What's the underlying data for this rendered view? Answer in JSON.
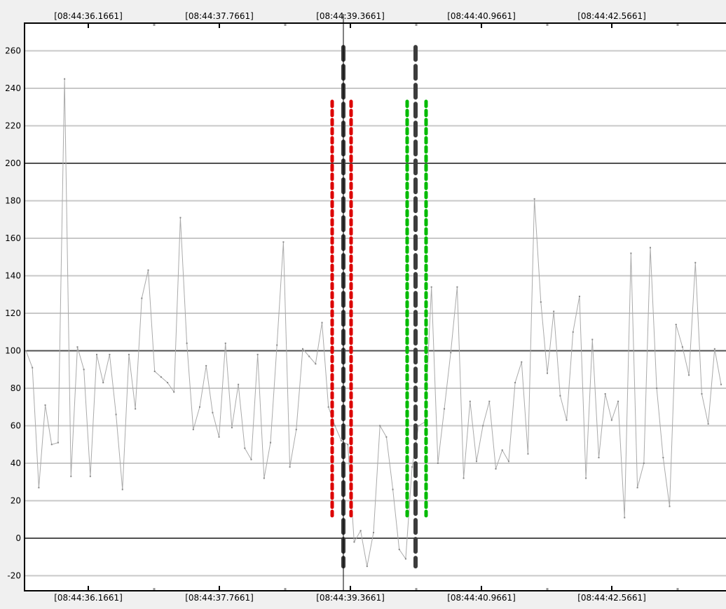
{
  "chart_data": {
    "type": "line",
    "title": "",
    "xlabel": "",
    "ylabel": "",
    "x_tick_labels": [
      "[08:44:36.1661]",
      "[08:44:37.7661]",
      "[08:44:39.3661]",
      "[08:44:40.9661]",
      "[08:44:42.5661]"
    ],
    "y_ticks": [
      -20,
      0,
      20,
      40,
      60,
      80,
      100,
      120,
      140,
      160,
      180,
      200,
      220,
      240,
      260
    ],
    "ylim": [
      -27,
      275
    ],
    "major_gridlines": [
      0,
      100,
      200
    ],
    "grid": true,
    "cursor_time": "[08:44:39.3661]",
    "series": [
      {
        "color": "#aaaaaa",
        "values": [
          100,
          91,
          27,
          71,
          50,
          51,
          245,
          33,
          102,
          90,
          33,
          98,
          83,
          98,
          66,
          26,
          98,
          69,
          128,
          143,
          89,
          86,
          83,
          78,
          171,
          104,
          58,
          70,
          92,
          67,
          54,
          104,
          59,
          82,
          48,
          42,
          98,
          32,
          51,
          103,
          158,
          38,
          58,
          101,
          97,
          93,
          115,
          70,
          60,
          52,
          50,
          -2,
          4,
          -15,
          3,
          60,
          54,
          26,
          -6,
          -11,
          38,
          60,
          62,
          134,
          40,
          69,
          99,
          134,
          32,
          73,
          41,
          60,
          73,
          37,
          47,
          41,
          83,
          94,
          45,
          181,
          126,
          88,
          121,
          76,
          63,
          110,
          129,
          32,
          106,
          43,
          77,
          63,
          73,
          11,
          152,
          27,
          40,
          155,
          80,
          43,
          17,
          114,
          102,
          87,
          147,
          77,
          61,
          101,
          82
        ]
      }
    ],
    "markers": [
      {
        "type": "dashed-dark",
        "time": "[08:44:39.3661]",
        "from": -15,
        "to": 262
      },
      {
        "type": "dashed-dark",
        "from": -15,
        "to": 262
      },
      {
        "type": "dotted-red",
        "from": 12,
        "to": 233
      },
      {
        "type": "dotted-red",
        "from": 12,
        "to": 233
      },
      {
        "type": "dotted-green",
        "from": 12,
        "to": 233
      },
      {
        "type": "dotted-green",
        "from": 12,
        "to": 233
      }
    ]
  },
  "colors": {
    "background": "#f0f0f0",
    "plot_background": "#ffffff",
    "minor_grid": "#c8c8c8",
    "major_grid": "#505050",
    "series_line": "#aaaaaa",
    "marker_dark": "#3c3c3c",
    "marker_red": "#dd0000",
    "marker_green": "#00bb00",
    "cursor": "#000000"
  }
}
